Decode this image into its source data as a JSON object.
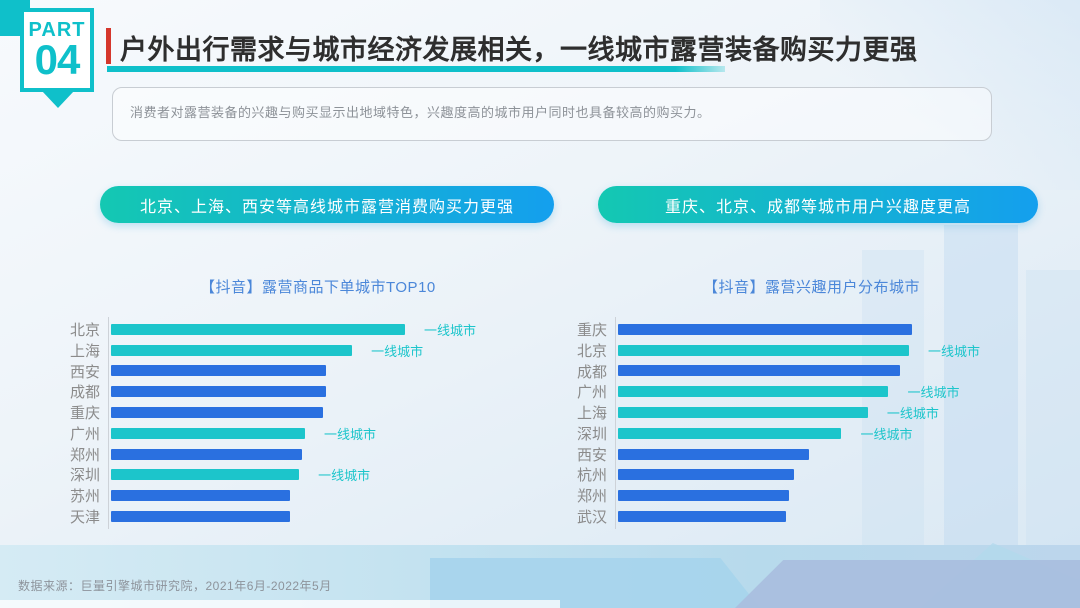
{
  "colors": {
    "accent_teal": "#0fc0ca",
    "red_bar": "#d5372c",
    "title_text": "#2e2e2e",
    "pill_gradient_start": "#14c8b2",
    "pill_gradient_end": "#149fee",
    "chart_title_blue": "#4b87d9",
    "bar_teal": "#1cc5cb",
    "bar_blue": "#2a70e0"
  },
  "badge": {
    "part_label": "PART",
    "part_number": "04"
  },
  "header": {
    "title": "户外出行需求与城市经济发展相关，一线城市露营装备购买力更强"
  },
  "description": {
    "text": "消费者对露营装备的兴趣与购买显示出地域特色，兴趣度高的城市用户同时也具备较高的购买力。"
  },
  "pills": [
    {
      "label": "北京、上海、西安等高线城市露营消费购买力更强"
    },
    {
      "label": "重庆、北京、成都等城市用户兴趣度更高"
    }
  ],
  "chart_data": [
    {
      "type": "bar",
      "orientation": "horizontal",
      "title": "【抖音】露营商品下单城市TOP10",
      "categories": [
        "北京",
        "上海",
        "西安",
        "成都",
        "重庆",
        "广州",
        "郑州",
        "深圳",
        "苏州",
        "天津"
      ],
      "values": [
        100,
        82,
        73,
        73,
        72,
        66,
        65,
        64,
        61,
        61
      ],
      "tier1_flags": [
        true,
        true,
        false,
        false,
        false,
        true,
        false,
        true,
        false,
        false
      ],
      "tier1_label": "一线城市",
      "value_axis_visible": false,
      "xlim": [
        0,
        100
      ],
      "grid": false,
      "legend": false,
      "note": "values are relative bar lengths, max city = 100; no numeric axis shown in source"
    },
    {
      "type": "bar",
      "orientation": "horizontal",
      "title": "【抖音】露营兴趣用户分布城市",
      "categories": [
        "重庆",
        "北京",
        "成都",
        "广州",
        "上海",
        "深圳",
        "西安",
        "杭州",
        "郑州",
        "武汉"
      ],
      "values": [
        100,
        99,
        96,
        92,
        85,
        76,
        65,
        60,
        58,
        57
      ],
      "tier1_flags": [
        false,
        true,
        false,
        true,
        true,
        true,
        false,
        false,
        false,
        false
      ],
      "tier1_label": "一线城市",
      "value_axis_visible": false,
      "xlim": [
        0,
        100
      ],
      "grid": false,
      "legend": false,
      "note": "values are relative bar lengths, max city = 100; no numeric axis shown in source"
    }
  ],
  "footer": {
    "source": "数据来源：巨量引擎城市研究院，2021年6月-2022年5月"
  }
}
